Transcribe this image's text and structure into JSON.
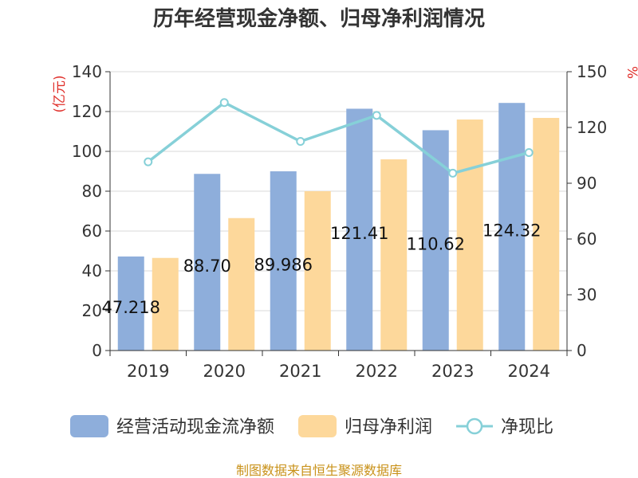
{
  "chart_data": {
    "type": "bar",
    "title": "历年经营现金净额、归母净利润情况",
    "categories": [
      "2019",
      "2020",
      "2021",
      "2022",
      "2023",
      "2024"
    ],
    "series": [
      {
        "name": "经营活动现金流净额",
        "kind": "bar",
        "axis": "left",
        "color": "#8eaedb",
        "values": [
          47.218,
          88.7,
          89.986,
          121.41,
          110.62,
          124.32
        ],
        "labels": [
          "47.218",
          "88.70",
          "89.986",
          "121.41",
          "110.62",
          "124.32"
        ]
      },
      {
        "name": "归母净利润",
        "kind": "bar",
        "axis": "left",
        "color": "#fdd89b",
        "values": [
          46.5,
          66.5,
          80.0,
          96.0,
          116.0,
          116.8
        ]
      },
      {
        "name": "净现比",
        "kind": "line",
        "axis": "right",
        "color": "#86d0d8",
        "values": [
          101.5,
          133.4,
          112.5,
          126.5,
          95.4,
          106.5
        ]
      }
    ],
    "left_axis": {
      "unit": "(亿元)",
      "range": [
        0,
        140
      ],
      "ticks": [
        "0",
        "20",
        "40",
        "60",
        "80",
        "100",
        "120",
        "140"
      ]
    },
    "right_axis": {
      "unit": "%",
      "range": [
        0,
        150
      ],
      "ticks": [
        "0",
        "30",
        "60",
        "90",
        "120",
        "150"
      ]
    },
    "grid": true,
    "legend_position": "bottom"
  },
  "source": "制图数据来自恒生聚源数据库"
}
